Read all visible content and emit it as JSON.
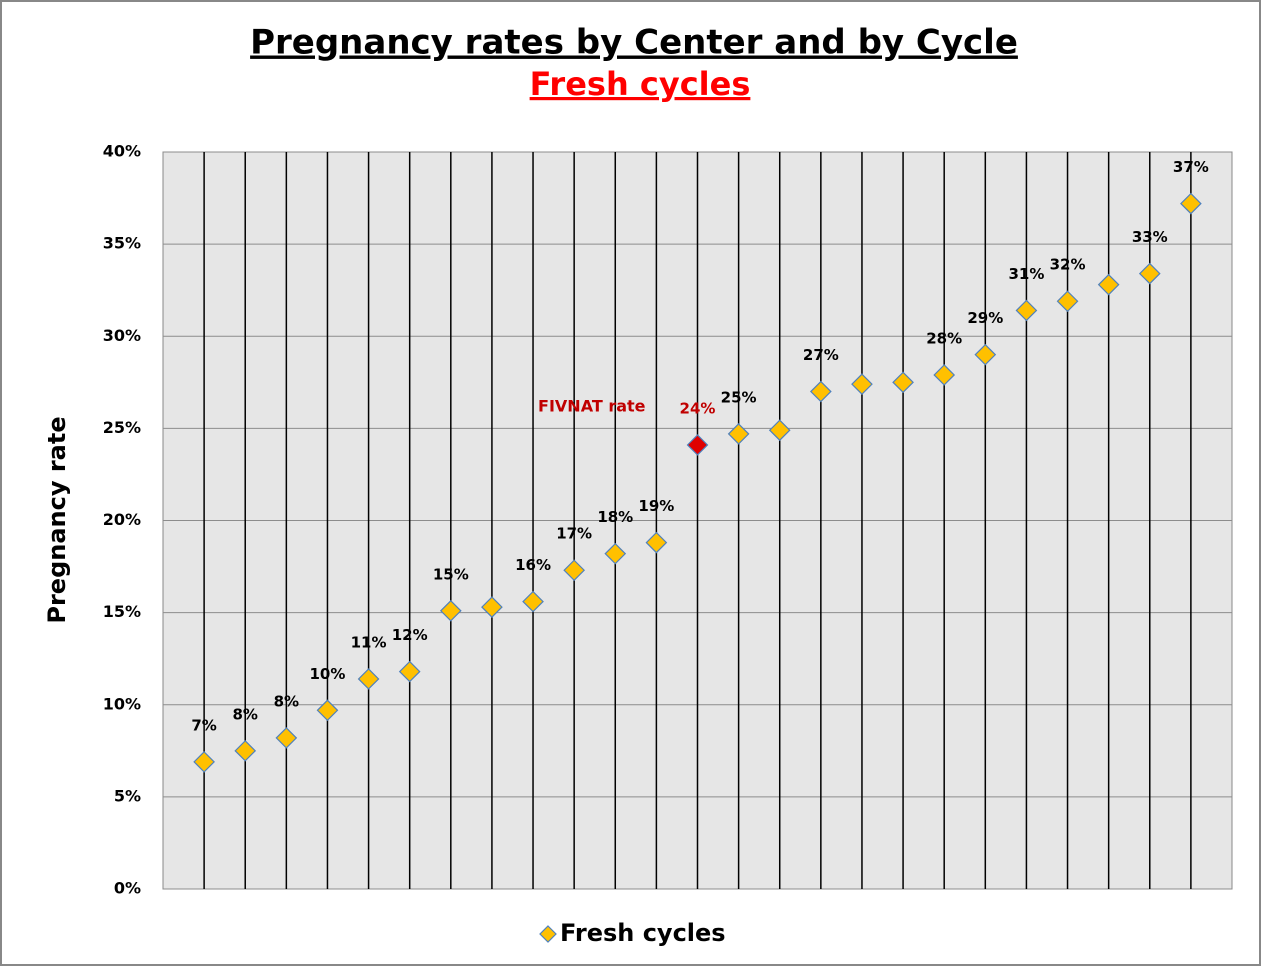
{
  "chart_data": {
    "type": "scatter",
    "title": "Pregnancy rates by Center and by Cycle",
    "subtitle": "Fresh cycles",
    "y_label": "Pregnancy rate",
    "annotation": "FIVNAT rate",
    "categories": [
      null,
      null,
      null,
      null,
      null,
      null,
      null,
      null,
      null,
      null,
      null,
      null,
      null,
      null,
      null,
      null,
      null,
      null,
      null,
      null,
      null,
      null,
      null,
      null,
      null
    ],
    "series": [
      {
        "name": "Fresh cycles",
        "color": "#FFC000",
        "point_colors": [
          "#FFC000",
          "#FFC000",
          "#FFC000",
          "#FFC000",
          "#FFC000",
          "#FFC000",
          "#FFC000",
          "#FFC000",
          "#FFC000",
          "#FFC000",
          "#FFC000",
          "#FFC000",
          "#E00000",
          "#FFC000",
          "#FFC000",
          "#FFC000",
          "#FFC000",
          "#FFC000",
          "#FFC000",
          "#FFC000",
          "#FFC000",
          "#FFC000",
          "#FFC000",
          "#FFC000",
          "#FFC000"
        ],
        "values": [
          6.9,
          7.5,
          8.2,
          9.7,
          11.4,
          11.8,
          15.1,
          15.3,
          15.6,
          17.3,
          18.2,
          18.8,
          24.1,
          24.7,
          24.9,
          27.0,
          27.4,
          27.5,
          27.9,
          29.0,
          31.4,
          31.9,
          32.8,
          33.4,
          37.2
        ],
        "value_labels": [
          "7%",
          "8%",
          "8%",
          "10%",
          "11%",
          "12%",
          "15%",
          null,
          "16%",
          "17%",
          "18%",
          "19%",
          "24%",
          "25%",
          null,
          "27%",
          null,
          null,
          "28%",
          "29%",
          "31%",
          "32%",
          null,
          "33%",
          "37%"
        ]
      }
    ],
    "ylim": [
      0,
      40
    ],
    "yticks": [
      {
        "value": 0,
        "label": "0%"
      },
      {
        "value": 5,
        "label": "5%"
      },
      {
        "value": 10,
        "label": "10%"
      },
      {
        "value": 15,
        "label": "15%"
      },
      {
        "value": 20,
        "label": "20%"
      },
      {
        "value": 25,
        "label": "25%"
      },
      {
        "value": 30,
        "label": "30%"
      },
      {
        "value": 35,
        "label": "35%"
      },
      {
        "value": 40,
        "label": "40%"
      }
    ],
    "grid": true,
    "legend": "bottom"
  }
}
